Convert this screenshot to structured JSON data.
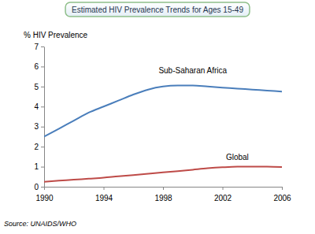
{
  "chart_data": {
    "type": "line",
    "title": "Estimated HIV Prevalence Trends for Ages 15-49",
    "y_label": "% HIV Prevalence",
    "source": "Source: UNAIDS/WHO",
    "x": [
      1990,
      1991,
      1992,
      1993,
      1994,
      1995,
      1996,
      1997,
      1998,
      1999,
      2000,
      2001,
      2002,
      2003,
      2004,
      2005,
      2006
    ],
    "series": [
      {
        "name": "Sub-Saharan Africa",
        "color": "#4a7ebb",
        "values": [
          2.5,
          2.9,
          3.3,
          3.7,
          4.0,
          4.3,
          4.6,
          4.85,
          5.0,
          5.05,
          5.05,
          5.0,
          4.95,
          4.9,
          4.85,
          4.8,
          4.75
        ]
      },
      {
        "name": "Global",
        "color": "#be4b48",
        "values": [
          0.25,
          0.3,
          0.35,
          0.4,
          0.45,
          0.52,
          0.58,
          0.65,
          0.72,
          0.78,
          0.85,
          0.92,
          0.97,
          1.0,
          1.0,
          1.0,
          0.98
        ]
      }
    ],
    "xlim": [
      1990,
      2006
    ],
    "xticks": [
      1990,
      1994,
      1998,
      2002,
      2006
    ],
    "ylim": [
      0,
      7
    ],
    "yticks": [
      0,
      1,
      2,
      3,
      4,
      5,
      6,
      7
    ],
    "grid": false
  }
}
